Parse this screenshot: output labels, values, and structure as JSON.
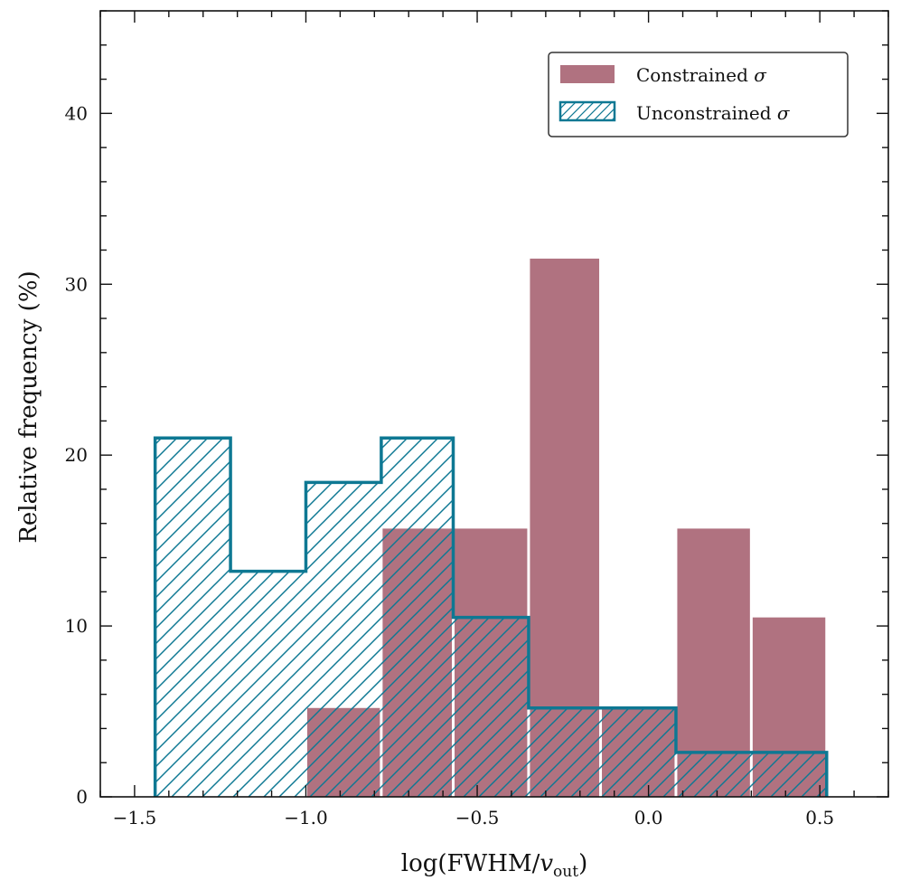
{
  "chart_data": {
    "type": "bar",
    "xlabel": "log(FWHM/v_out)",
    "xlabel_parts": {
      "pre": "log(FWHM/",
      "var": "v",
      "sub": "out",
      "post": ")"
    },
    "ylabel": "Relative frequency (%)",
    "xlim": [
      -1.6,
      0.7
    ],
    "ylim": [
      0,
      46
    ],
    "xticks": [
      -1.5,
      -1.0,
      -0.5,
      0.0,
      0.5
    ],
    "xtick_labels": [
      "−1.5",
      "−1.0",
      "−0.5",
      "0.0",
      "0.5"
    ],
    "yticks": [
      0,
      10,
      20,
      30,
      40
    ],
    "ytick_labels": [
      "0",
      "10",
      "20",
      "30",
      "40"
    ],
    "grid": false,
    "legend_position": "top-right",
    "series": [
      {
        "name": "Constrained σ",
        "style": "filled",
        "color": "#b07280",
        "bins": [
          {
            "x0": -1.0,
            "x1": -0.78,
            "value": 5.2
          },
          {
            "x0": -0.78,
            "x1": -0.57,
            "value": 15.7
          },
          {
            "x0": -0.57,
            "x1": -0.35,
            "value": 15.7
          },
          {
            "x0": -0.35,
            "x1": -0.14,
            "value": 31.5
          },
          {
            "x0": -0.14,
            "x1": 0.08,
            "value": 5.2
          },
          {
            "x0": 0.08,
            "x1": 0.3,
            "value": 15.7
          },
          {
            "x0": 0.3,
            "x1": 0.52,
            "value": 10.5
          }
        ]
      },
      {
        "name": "Unconstrained σ",
        "style": "hatched-step",
        "color": "#0e7893",
        "edges": [
          -1.44,
          -1.22,
          -1.0,
          -0.78,
          -0.57,
          -0.35,
          -0.14,
          0.08,
          0.3,
          0.52
        ],
        "values": [
          21.0,
          13.2,
          18.4,
          21.0,
          10.5,
          5.2,
          5.2,
          2.6,
          2.6
        ]
      }
    ],
    "legend": [
      {
        "label": "Constrained",
        "symbol": "σ"
      },
      {
        "label": "Unconstrained",
        "symbol": "σ"
      }
    ]
  }
}
